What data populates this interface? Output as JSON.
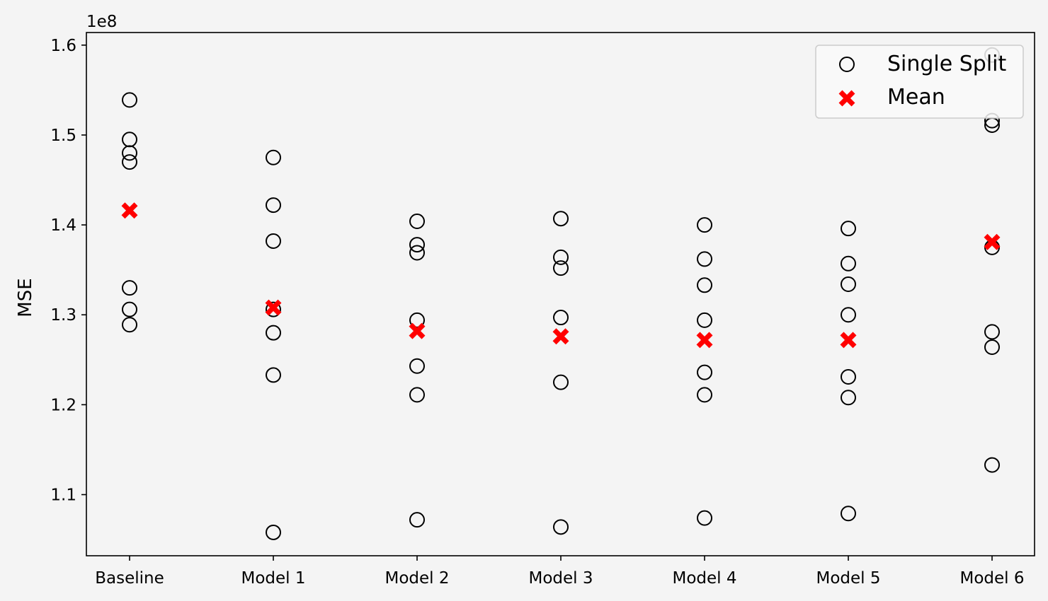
{
  "chart_data": {
    "type": "scatter",
    "title": "",
    "xlabel": "",
    "ylabel": "MSE",
    "y_offset_label": "1e8",
    "categories": [
      "Baseline",
      "Model 1",
      "Model 2",
      "Model 3",
      "Model 4",
      "Model 5",
      "Model 6"
    ],
    "ylim": [
      1.032,
      1.614
    ],
    "yticks": [
      1.1,
      1.2,
      1.3,
      1.4,
      1.5,
      1.6
    ],
    "ytick_labels": [
      "1.1",
      "1.2",
      "1.3",
      "1.4",
      "1.5",
      "1.6"
    ],
    "grid": false,
    "legend_position": "top-right",
    "series": [
      {
        "name": "Single Split",
        "marker": "open-circle",
        "color": "#000000",
        "values": [
          [
            1.539,
            1.495,
            1.48,
            1.47,
            1.33,
            1.306,
            1.289
          ],
          [
            1.475,
            1.422,
            1.382,
            1.306,
            1.28,
            1.233,
            1.058
          ],
          [
            1.404,
            1.378,
            1.369,
            1.294,
            1.243,
            1.211,
            1.072
          ],
          [
            1.407,
            1.364,
            1.352,
            1.297,
            1.225,
            1.064
          ],
          [
            1.4,
            1.362,
            1.333,
            1.294,
            1.236,
            1.211,
            1.074
          ],
          [
            1.396,
            1.357,
            1.334,
            1.3,
            1.231,
            1.208,
            1.079
          ],
          [
            1.589,
            1.516,
            1.511,
            1.375,
            1.281,
            1.264,
            1.133
          ]
        ]
      },
      {
        "name": "Mean",
        "marker": "filled-x",
        "color": "#ff0000",
        "values": [
          1.416,
          1.308,
          1.282,
          1.276,
          1.272,
          1.272,
          1.381
        ]
      }
    ]
  }
}
